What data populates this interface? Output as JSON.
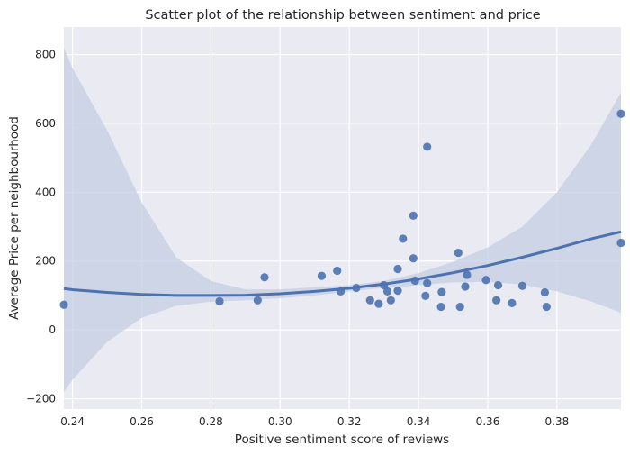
{
  "chart_data": {
    "type": "scatter",
    "title": "Scatter plot of the relationship between sentiment and price",
    "xlabel": "Positive sentiment score of reviews",
    "ylabel": "Average Price per neighbourhood",
    "xlim": [
      0.2375,
      0.3985
    ],
    "ylim": [
      -230,
      880
    ],
    "xticks": [
      0.24,
      0.26,
      0.28,
      0.3,
      0.32,
      0.34,
      0.36,
      0.38
    ],
    "xtick_labels": [
      "0.24",
      "0.26",
      "0.28",
      "0.30",
      "0.32",
      "0.34",
      "0.36",
      "0.38"
    ],
    "yticks": [
      -200,
      0,
      200,
      400,
      600,
      800
    ],
    "ytick_labels": [
      "−200",
      "0",
      "200",
      "400",
      "600",
      "800"
    ],
    "grid": true,
    "colors": {
      "background": "#eaeaf2",
      "grid": "#ffffff",
      "points": "#4c72b0",
      "band": "#c4cde2"
    },
    "points": [
      {
        "x": 0.2375,
        "y": 73
      },
      {
        "x": 0.2825,
        "y": 83
      },
      {
        "x": 0.2935,
        "y": 86
      },
      {
        "x": 0.2955,
        "y": 153
      },
      {
        "x": 0.312,
        "y": 157
      },
      {
        "x": 0.3165,
        "y": 172
      },
      {
        "x": 0.3175,
        "y": 112
      },
      {
        "x": 0.322,
        "y": 122
      },
      {
        "x": 0.326,
        "y": 86
      },
      {
        "x": 0.3285,
        "y": 76
      },
      {
        "x": 0.33,
        "y": 130
      },
      {
        "x": 0.331,
        "y": 112
      },
      {
        "x": 0.332,
        "y": 86
      },
      {
        "x": 0.334,
        "y": 114
      },
      {
        "x": 0.334,
        "y": 177
      },
      {
        "x": 0.3355,
        "y": 265
      },
      {
        "x": 0.3385,
        "y": 332
      },
      {
        "x": 0.3385,
        "y": 208
      },
      {
        "x": 0.339,
        "y": 143
      },
      {
        "x": 0.342,
        "y": 99
      },
      {
        "x": 0.3425,
        "y": 136
      },
      {
        "x": 0.3425,
        "y": 532
      },
      {
        "x": 0.3465,
        "y": 67
      },
      {
        "x": 0.3467,
        "y": 110
      },
      {
        "x": 0.3515,
        "y": 224
      },
      {
        "x": 0.352,
        "y": 67
      },
      {
        "x": 0.3535,
        "y": 126
      },
      {
        "x": 0.354,
        "y": 160
      },
      {
        "x": 0.3595,
        "y": 145
      },
      {
        "x": 0.3625,
        "y": 86
      },
      {
        "x": 0.363,
        "y": 130
      },
      {
        "x": 0.367,
        "y": 78
      },
      {
        "x": 0.37,
        "y": 128
      },
      {
        "x": 0.3765,
        "y": 109
      },
      {
        "x": 0.377,
        "y": 67
      },
      {
        "x": 0.3985,
        "y": 253
      },
      {
        "x": 0.3985,
        "y": 628
      }
    ],
    "regression": {
      "x": [
        0.2375,
        0.24,
        0.25,
        0.26,
        0.27,
        0.28,
        0.29,
        0.3,
        0.31,
        0.32,
        0.33,
        0.34,
        0.35,
        0.36,
        0.37,
        0.38,
        0.39,
        0.3985
      ],
      "y": [
        120,
        117,
        109,
        103,
        100,
        100,
        101,
        105,
        112,
        121,
        133,
        148,
        166,
        187,
        211,
        237,
        265,
        285
      ],
      "ci_lower": [
        -180,
        -145,
        -35,
        35,
        70,
        82,
        86,
        92,
        100,
        112,
        122,
        130,
        138,
        140,
        132,
        112,
        82,
        50
      ],
      "ci_upper": [
        820,
        760,
        580,
        370,
        210,
        142,
        118,
        118,
        124,
        130,
        142,
        165,
        198,
        240,
        300,
        400,
        540,
        690
      ]
    }
  }
}
